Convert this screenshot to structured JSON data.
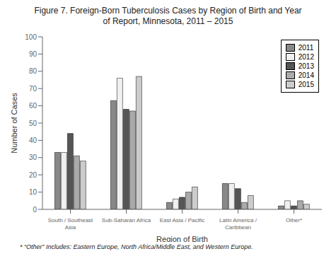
{
  "chart_data": {
    "type": "bar",
    "title": "Figure 7. Foreign-Born Tuberculosis Cases by Region of Birth and Year\nof Report, Minnesota, 2011 – 2015",
    "xlabel": "Region of Birth",
    "ylabel": "Number of Cases",
    "annotations": [
      "* “Other” Includes: Eastern Europe, North Africa/Middle East, and Western Europe."
    ],
    "categories": [
      "South / Southeast\nAsia",
      "Sub-Saharan Africa",
      "East Asia / Pacific",
      "Latin America /\nCaribbean",
      "Other*"
    ],
    "series": [
      {
        "name": "2011",
        "color": "#888888",
        "values": [
          33,
          63,
          4,
          15,
          2
        ]
      },
      {
        "name": "2012",
        "color": "#f0f0f0",
        "values": [
          33,
          76,
          6,
          15,
          5
        ]
      },
      {
        "name": "2013",
        "color": "#555555",
        "values": [
          44,
          58,
          7,
          12,
          2
        ]
      },
      {
        "name": "2014",
        "color": "#aaaaaa",
        "values": [
          31,
          57,
          10,
          4,
          5
        ]
      },
      {
        "name": "2015",
        "color": "#cccccc",
        "values": [
          28,
          77,
          13,
          8,
          3
        ]
      }
    ],
    "ylim": [
      0,
      100
    ],
    "yticks": [
      0,
      10,
      20,
      30,
      40,
      50,
      60,
      70,
      80,
      90,
      100
    ],
    "grid": false,
    "legend": "upper right"
  }
}
